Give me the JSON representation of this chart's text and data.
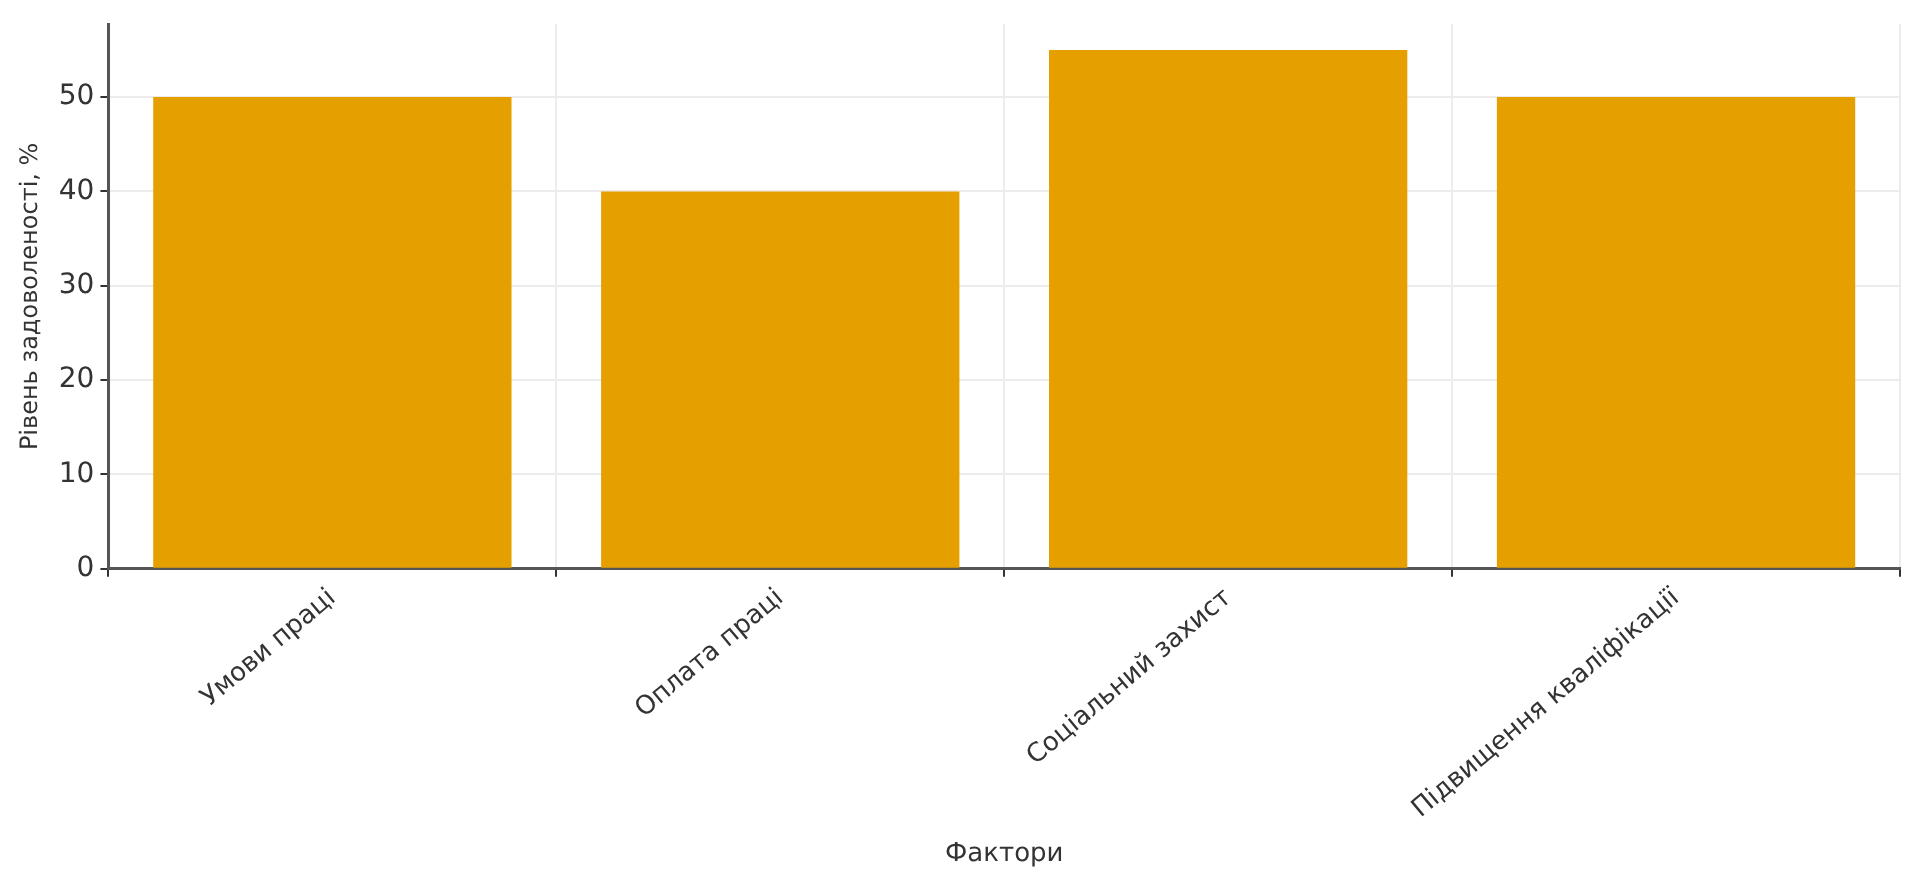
{
  "chart_data": {
    "type": "bar",
    "xlabel": "Фактори",
    "ylabel": "Рівень задоволеності, %",
    "categories": [
      "Умови праці",
      "Оплата праці",
      "Соціальний захист",
      "Підвищення кваліфікації"
    ],
    "values": [
      50,
      40,
      55,
      50
    ],
    "color": "#e5a000",
    "ylim": [
      0,
      57.75
    ],
    "yticks": [
      0,
      10,
      20,
      30,
      40,
      50
    ],
    "grid": true,
    "legend": false
  }
}
